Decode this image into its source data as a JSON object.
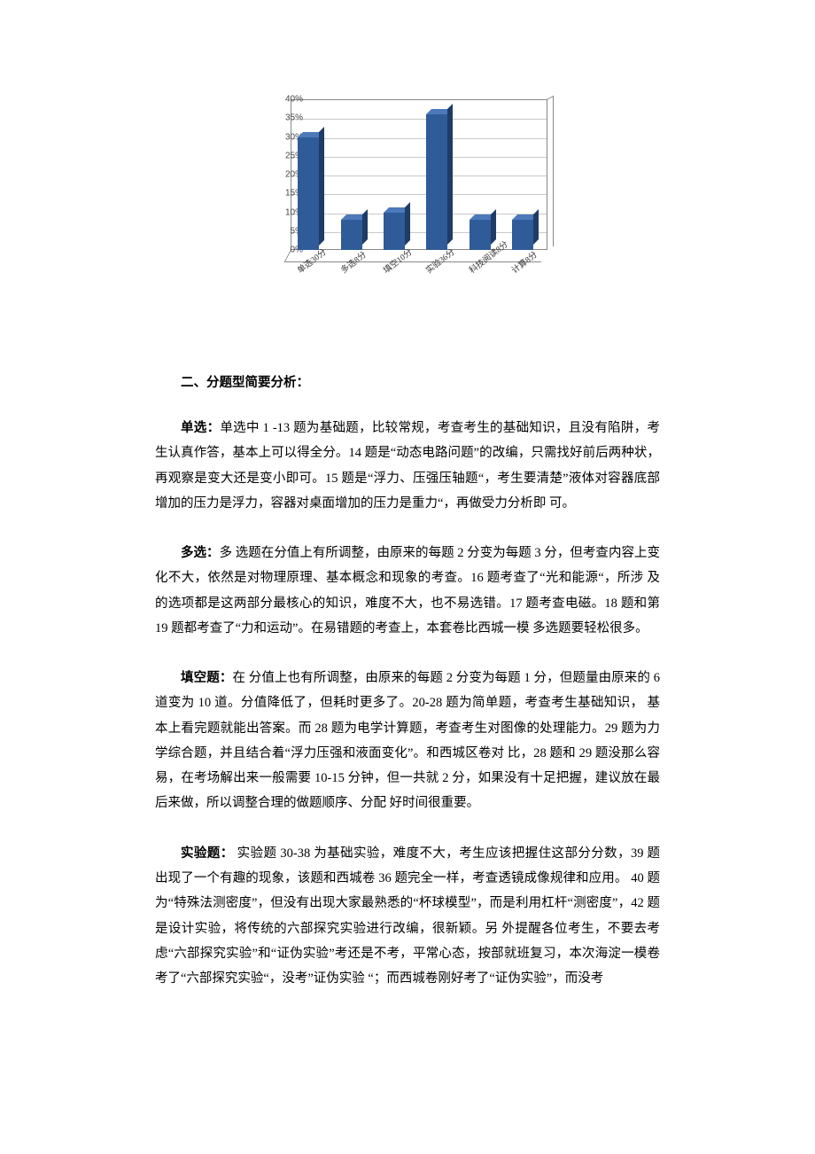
{
  "chart": {
    "type": "bar-3d",
    "y_axis": {
      "min": 0,
      "max": 40,
      "step": 5,
      "suffix": "%",
      "ticks": [
        0,
        5,
        10,
        15,
        20,
        25,
        30,
        35,
        40
      ]
    },
    "categories": [
      "单选30分",
      "多选8分",
      "填空10分",
      "实验36分",
      "科技阅读8分",
      "计算8分"
    ],
    "values": [
      30,
      8,
      10,
      36,
      8,
      8
    ],
    "bar_color_front": "#2f5b98",
    "bar_color_top": "#4b79b9",
    "bar_color_side": "#1e3c66",
    "grid_color": "#c9c9c9",
    "background": "#ffffff",
    "font_family": "SimSun",
    "y_label_fontsize": 10,
    "x_label_fontsize": 9.5,
    "x_label_rotation_deg": -38
  },
  "section2_title": "二、分题型简要分析：",
  "danxuan": {
    "lead": "单选：",
    "text": "单选中 1 -13 题为基础题，比较常规，考查考生的基础知识，且没有陷阱，考生认真作答，基本上可以得全分。14 题是“动态电路问题”的改编，只需找好前后两种状，再观察是变大还是变小即可。15 题是“浮力、压强压轴题“，考生要清楚”液体对容器底部增加的压力是浮力，容器对桌面增加的压力是重力“，再做受力分析即 可。"
  },
  "duoxuan": {
    "lead": "多选：",
    "text": "多 选题在分值上有所调整，由原来的每题 2 分变为每题 3 分，但考查内容上变化不大，依然是对物理原理、基本概念和现象的考查。16 题考查了“光和能源“，所涉 及的选项都是这两部分最核心的知识，难度不大，也不易选错。17 题考查电磁。18 题和第 19 题都考查了“力和运动”。在易错题的考查上，本套卷比西城一模 多选题要轻松很多。"
  },
  "tiankong": {
    "lead": "填空题：",
    "text": "在 分值上也有所调整，由原来的每题 2 分变为每题 1 分，但题量由原来的 6 道变为 10 道。分值降低了，但耗时更多了。20-28 题为简单题，考查考生基础知识， 基本上看完题就能出答案。而 28 题为电学计算题，考查考生对图像的处理能力。29 题为力学综合题，并且结合着“浮力压强和液面变化”。和西城区卷对 比，28 题和 29 题没那么容易，在考场解出来一般需要 10-15 分钟，但一共就 2 分，如果没有十足把握，建议放在最后来做，所以调整合理的做题顺序、分配 好时间很重要。"
  },
  "shiyan": {
    "lead": "实验题：",
    "text": " 实验题 30-38 为基础实验，难度不大，考生应该把握住这部分分数，39 题出现了一个有趣的现象，该题和西城卷 36 题完全一样，考查透镜成像规律和应用。 40 题为“特殊法测密度”，但没有出现大家最熟悉的“杯球模型”，而是利用杠杆“测密度”，42 题是设计实验，将传统的六部探究实验进行改编，很新颖。另 外提醒各位考生，不要去考虑“六部探究实验”和“证伪实验”考还是不考，平常心态，按部就班复习，本次海淀一模卷考了“六部探究实验“，没考”证伪实验 “；而西城卷刚好考了“证伪实验”，而没考"
  }
}
